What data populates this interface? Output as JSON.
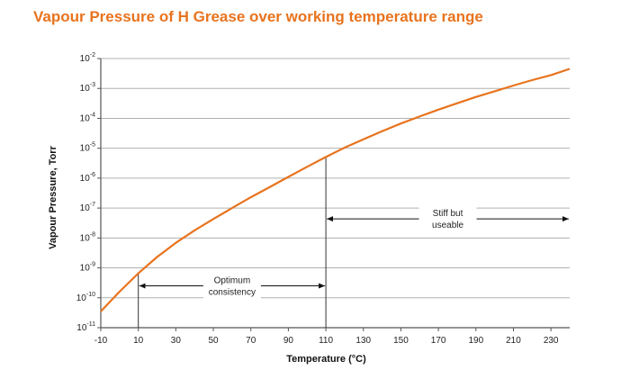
{
  "title": "Vapour Pressure of H Grease over working temperature range",
  "colors": {
    "title": "#e8731e",
    "curve": "#e8731e",
    "grid": "#b0b0b0",
    "axis": "#555555"
  },
  "chart_data": {
    "type": "line",
    "title": "Vapour Pressure of H Grease over working temperature range",
    "xlabel": "Temperature (°C)",
    "ylabel": "Vapour Pressure, Torr",
    "yscale": "log",
    "xlim": [
      -10,
      240
    ],
    "ylim": [
      1e-11,
      0.01
    ],
    "grid": "horizontal",
    "x_ticks": [
      "-10",
      "10",
      "30",
      "50",
      "70",
      "90",
      "110",
      "130",
      "150",
      "170",
      "190",
      "210",
      "230"
    ],
    "y_ticks": [
      {
        "base": "10",
        "exp": "-2"
      },
      {
        "base": "10",
        "exp": "-3"
      },
      {
        "base": "10",
        "exp": "-4"
      },
      {
        "base": "10",
        "exp": "-5"
      },
      {
        "base": "10",
        "exp": "-6"
      },
      {
        "base": "10",
        "exp": "-7"
      },
      {
        "base": "10",
        "exp": "-8"
      },
      {
        "base": "10",
        "exp": "-9"
      },
      {
        "base": "10",
        "exp": "-10"
      },
      {
        "base": "10",
        "exp": "-11"
      }
    ],
    "series": [
      {
        "x": [
          -10,
          0,
          10,
          20,
          30,
          40,
          50,
          60,
          70,
          80,
          90,
          100,
          110,
          120,
          130,
          140,
          150,
          160,
          170,
          180,
          190,
          200,
          210,
          220,
          230,
          240
        ],
        "y": [
          3.5e-11,
          1.6e-10,
          6.6e-10,
          2.3e-09,
          6.9e-09,
          1.8e-08,
          4.3e-08,
          1e-07,
          2.3e-07,
          5e-07,
          1.1e-06,
          2.4e-06,
          5.1e-06,
          1.05e-05,
          2e-05,
          3.7e-05,
          6.7e-05,
          0.000115,
          0.000195,
          0.00032,
          0.00052,
          0.0008,
          0.00125,
          0.0019,
          0.0028,
          0.0045
        ]
      }
    ],
    "annotations": [
      {
        "line1": "Optimum",
        "line2": "consistency",
        "from": 10,
        "to": 110,
        "arrow_y": 1e-09
      },
      {
        "line1": "Stiff but",
        "line2": "useable",
        "from": 110,
        "to": 240,
        "arrow_y": 1e-07
      }
    ],
    "vlines": [
      10,
      110
    ]
  }
}
